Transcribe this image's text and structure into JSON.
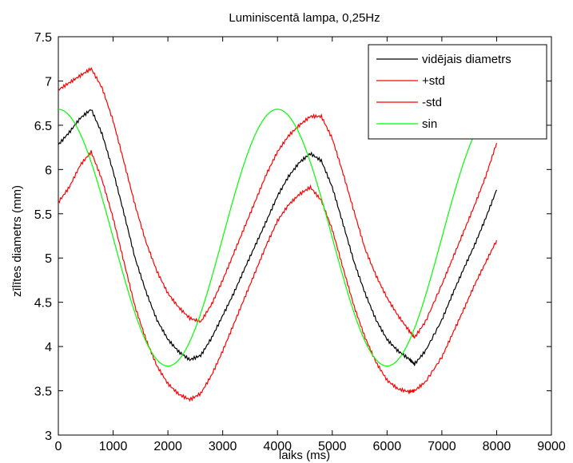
{
  "chart_data": {
    "type": "line",
    "title": "Luminiscentā lampa, 0,25Hz",
    "xlabel": "laiks (ms)",
    "ylabel": "zīlītes diametrs (mm)",
    "xlim": [
      0,
      9000
    ],
    "ylim": [
      3,
      7.5
    ],
    "x_ticks": [
      "0",
      "1000",
      "2000",
      "3000",
      "4000",
      "5000",
      "6000",
      "7000",
      "8000",
      "9000"
    ],
    "y_ticks": [
      "3",
      "3.5",
      "4",
      "4.5",
      "5",
      "5.5",
      "6",
      "6.5",
      "7",
      "7.5"
    ],
    "grid": false,
    "legend_position": "top-right",
    "series": [
      {
        "name": "vidējais diametrs",
        "color": "#000000",
        "points": [
          [
            0,
            6.28
          ],
          [
            200,
            6.42
          ],
          [
            400,
            6.58
          ],
          [
            600,
            6.68
          ],
          [
            800,
            6.4
          ],
          [
            1000,
            5.98
          ],
          [
            1200,
            5.5
          ],
          [
            1400,
            5.0
          ],
          [
            1600,
            4.62
          ],
          [
            1800,
            4.3
          ],
          [
            2000,
            4.08
          ],
          [
            2200,
            3.94
          ],
          [
            2400,
            3.85
          ],
          [
            2600,
            3.9
          ],
          [
            2800,
            4.1
          ],
          [
            3000,
            4.35
          ],
          [
            3200,
            4.6
          ],
          [
            3400,
            4.88
          ],
          [
            3600,
            5.15
          ],
          [
            3800,
            5.42
          ],
          [
            4000,
            5.7
          ],
          [
            4200,
            5.92
          ],
          [
            4400,
            6.08
          ],
          [
            4600,
            6.18
          ],
          [
            4800,
            6.1
          ],
          [
            5000,
            5.8
          ],
          [
            5200,
            5.38
          ],
          [
            5400,
            4.95
          ],
          [
            5600,
            4.6
          ],
          [
            5800,
            4.3
          ],
          [
            6000,
            4.08
          ],
          [
            6200,
            3.95
          ],
          [
            6400,
            3.86
          ],
          [
            6500,
            3.8
          ],
          [
            6700,
            3.95
          ],
          [
            7000,
            4.3
          ],
          [
            7200,
            4.6
          ],
          [
            7400,
            4.88
          ],
          [
            7600,
            5.15
          ],
          [
            7800,
            5.45
          ],
          [
            8000,
            5.77
          ]
        ]
      },
      {
        "name": "+std",
        "color": "#ff0000",
        "points": [
          [
            0,
            6.9
          ],
          [
            200,
            6.98
          ],
          [
            400,
            7.06
          ],
          [
            600,
            7.14
          ],
          [
            800,
            6.92
          ],
          [
            1000,
            6.55
          ],
          [
            1200,
            6.08
          ],
          [
            1400,
            5.6
          ],
          [
            1600,
            5.18
          ],
          [
            1800,
            4.85
          ],
          [
            2000,
            4.6
          ],
          [
            2200,
            4.44
          ],
          [
            2400,
            4.32
          ],
          [
            2600,
            4.28
          ],
          [
            2800,
            4.48
          ],
          [
            3000,
            4.75
          ],
          [
            3200,
            5.05
          ],
          [
            3400,
            5.35
          ],
          [
            3600,
            5.65
          ],
          [
            3800,
            5.95
          ],
          [
            4000,
            6.2
          ],
          [
            4200,
            6.38
          ],
          [
            4400,
            6.5
          ],
          [
            4600,
            6.6
          ],
          [
            4800,
            6.6
          ],
          [
            5000,
            6.35
          ],
          [
            5200,
            5.95
          ],
          [
            5400,
            5.52
          ],
          [
            5600,
            5.1
          ],
          [
            5800,
            4.8
          ],
          [
            6000,
            4.55
          ],
          [
            6200,
            4.35
          ],
          [
            6400,
            4.18
          ],
          [
            6500,
            4.1
          ],
          [
            6700,
            4.28
          ],
          [
            7000,
            4.7
          ],
          [
            7200,
            5.0
          ],
          [
            7400,
            5.3
          ],
          [
            7600,
            5.6
          ],
          [
            7800,
            5.92
          ],
          [
            8000,
            6.3
          ]
        ]
      },
      {
        "name": "-std",
        "color": "#ff0000",
        "points": [
          [
            0,
            5.63
          ],
          [
            200,
            5.8
          ],
          [
            400,
            6.05
          ],
          [
            600,
            6.2
          ],
          [
            800,
            5.88
          ],
          [
            1000,
            5.45
          ],
          [
            1200,
            4.95
          ],
          [
            1400,
            4.45
          ],
          [
            1600,
            4.08
          ],
          [
            1800,
            3.78
          ],
          [
            2000,
            3.58
          ],
          [
            2200,
            3.46
          ],
          [
            2400,
            3.4
          ],
          [
            2600,
            3.47
          ],
          [
            2800,
            3.68
          ],
          [
            3000,
            3.95
          ],
          [
            3200,
            4.25
          ],
          [
            3400,
            4.55
          ],
          [
            3600,
            4.85
          ],
          [
            3800,
            5.15
          ],
          [
            4000,
            5.42
          ],
          [
            4200,
            5.6
          ],
          [
            4400,
            5.72
          ],
          [
            4600,
            5.8
          ],
          [
            4800,
            5.65
          ],
          [
            5000,
            5.32
          ],
          [
            5200,
            4.88
          ],
          [
            5400,
            4.45
          ],
          [
            5600,
            4.1
          ],
          [
            5800,
            3.82
          ],
          [
            6000,
            3.62
          ],
          [
            6200,
            3.52
          ],
          [
            6400,
            3.49
          ],
          [
            6500,
            3.5
          ],
          [
            6700,
            3.6
          ],
          [
            7000,
            3.88
          ],
          [
            7200,
            4.15
          ],
          [
            7400,
            4.42
          ],
          [
            7600,
            4.7
          ],
          [
            7800,
            4.95
          ],
          [
            8000,
            5.2
          ]
        ]
      },
      {
        "name": "sin",
        "color": "#00ff00",
        "center": 5.23,
        "amplitude": 1.45,
        "period_ms": 4000,
        "x_range": [
          0,
          7700
        ]
      }
    ]
  }
}
